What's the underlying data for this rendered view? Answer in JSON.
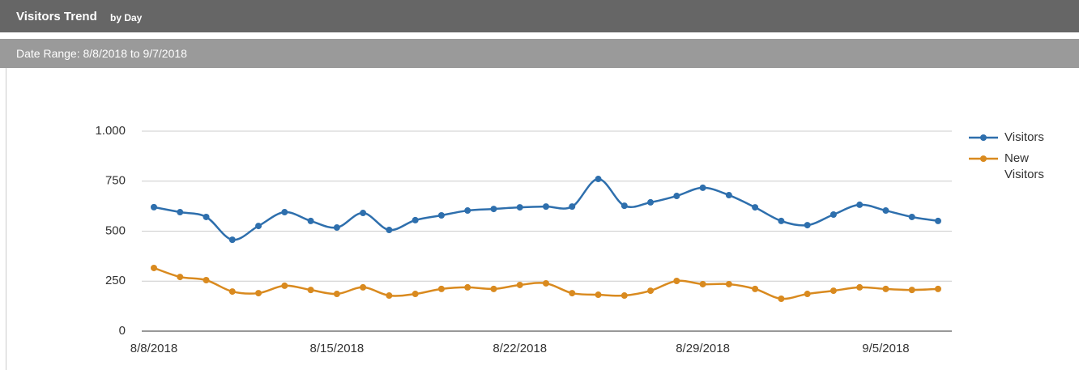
{
  "header": {
    "title": "Visitors Trend",
    "subtitle": "by Day",
    "date_range": "Date Range: 8/8/2018 to 9/7/2018"
  },
  "chart_data": {
    "type": "line",
    "categories": [
      "8/8/2018",
      null,
      null,
      null,
      null,
      null,
      null,
      "8/15/2018",
      null,
      null,
      null,
      null,
      null,
      null,
      "8/22/2018",
      null,
      null,
      null,
      null,
      null,
      null,
      "8/29/2018",
      null,
      null,
      null,
      null,
      null,
      null,
      "9/5/2018",
      null,
      null
    ],
    "series": [
      {
        "name": "Visitors",
        "color": "#2e6fad",
        "values": [
          620,
          595,
          571,
          457,
          526,
          595,
          551,
          518,
          591,
          506,
          555,
          579,
          603,
          611,
          619,
          623,
          623,
          761,
          627,
          644,
          676,
          717,
          680,
          619,
          551,
          530,
          583,
          632,
          603,
          571,
          551
        ]
      },
      {
        "name": "New Visitors",
        "color": "#d98a1f",
        "values": [
          316,
          271,
          255,
          198,
          190,
          227,
          206,
          186,
          219,
          178,
          186,
          211,
          219,
          211,
          231,
          239,
          190,
          182,
          178,
          202,
          251,
          235,
          235,
          211,
          162,
          186,
          202,
          219,
          211,
          206,
          211
        ]
      }
    ],
    "ylim": [
      0,
      1000
    ],
    "yticks": [
      0,
      250,
      500,
      750,
      {
        "value": 1000,
        "label": "1.000"
      }
    ],
    "grid": true,
    "legend": "right"
  }
}
